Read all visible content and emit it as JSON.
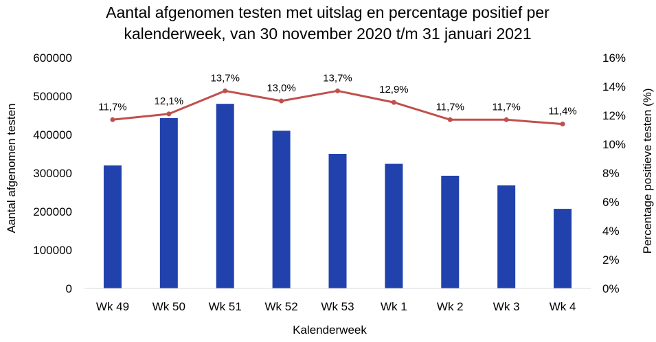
{
  "chart_data": {
    "type": "bar+line",
    "title_line1": "Aantal afgenomen testen met uitslag en percentage positief per",
    "title_line2": "kalenderweek, van 30 november 2020 t/m 31 januari 2021",
    "xlabel": "Kalenderweek",
    "ylabel_left": "Aantal afgenomen testen",
    "ylabel_right": "Percentage positieve testen (%)",
    "categories": [
      "Wk 49",
      "Wk 50",
      "Wk 51",
      "Wk 52",
      "Wk 53",
      "Wk 1",
      "Wk 2",
      "Wk 3",
      "Wk 4"
    ],
    "bars": {
      "values": [
        320000,
        443000,
        480000,
        410000,
        350000,
        324000,
        293000,
        268000,
        207000
      ],
      "color": "#2142ad"
    },
    "line": {
      "values": [
        11.7,
        12.1,
        13.7,
        13.0,
        13.7,
        12.9,
        11.7,
        11.7,
        11.4
      ],
      "labels": [
        "11,7%",
        "12,1%",
        "13,7%",
        "13,0%",
        "13,7%",
        "12,9%",
        "11,7%",
        "11,7%",
        "11,4%"
      ],
      "color": "#c0504d"
    },
    "ylim_left": [
      0,
      600000
    ],
    "yticks_left": [
      "0",
      "100000",
      "200000",
      "300000",
      "400000",
      "500000",
      "600000"
    ],
    "ylim_right": [
      0,
      16
    ],
    "yticks_right": [
      "0%",
      "2%",
      "4%",
      "6%",
      "8%",
      "10%",
      "12%",
      "14%",
      "16%"
    ],
    "grid": false,
    "legend": "none"
  }
}
